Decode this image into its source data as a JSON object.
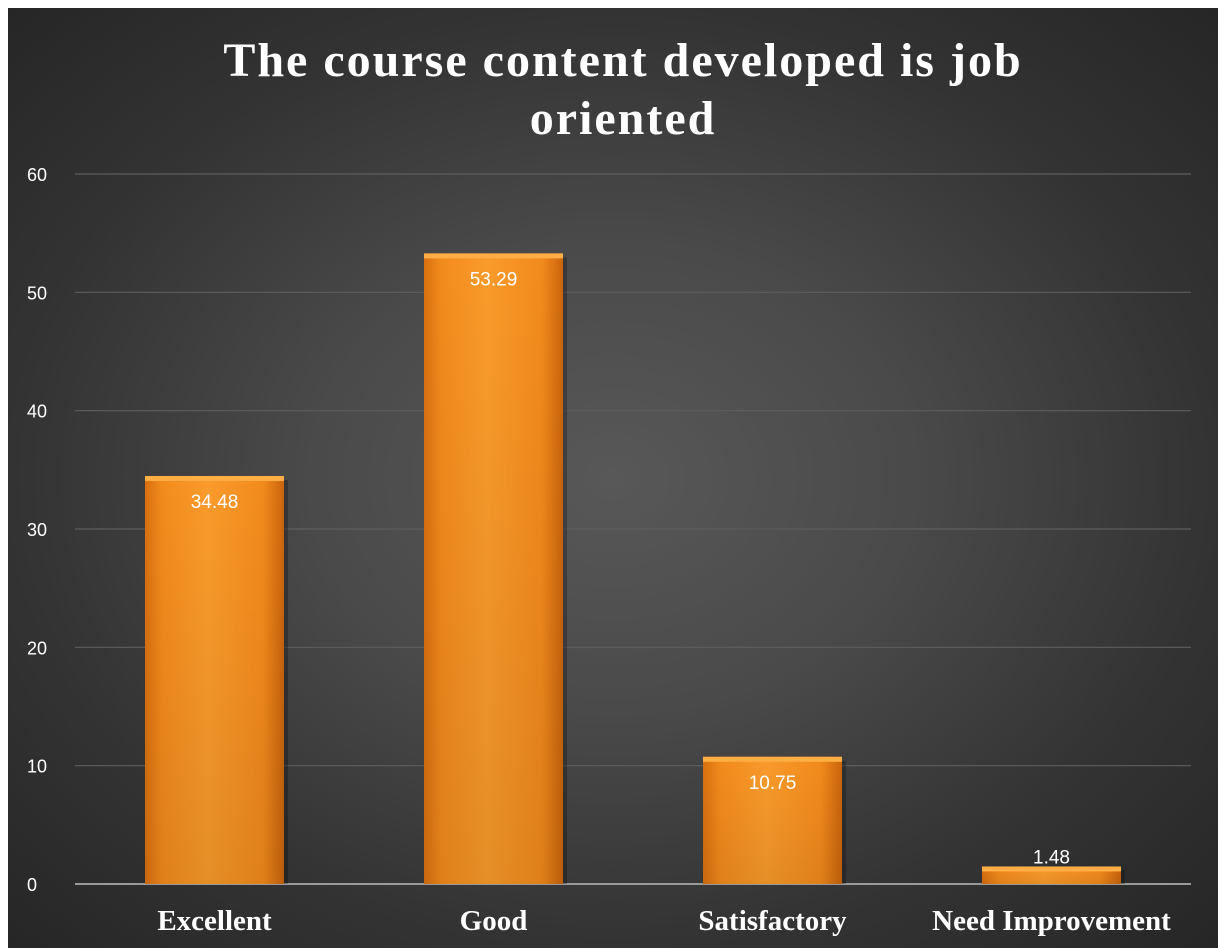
{
  "chart_data": {
    "type": "bar",
    "title_lines": [
      "The course content developed is job",
      "oriented"
    ],
    "categories": [
      "Excellent",
      "Good",
      "Satisfactory",
      "Need Improvement"
    ],
    "values": [
      34.48,
      53.29,
      10.75,
      1.48
    ],
    "data_labels": [
      "34.48",
      "53.29",
      "10.75",
      "1.48"
    ],
    "ylim": [
      0,
      60
    ],
    "yticks": [
      0,
      10,
      20,
      30,
      40,
      50,
      60
    ],
    "grid": true,
    "legend": "none",
    "xlabel": "",
    "ylabel": "",
    "colors": {
      "bar": "#f7931e",
      "bar_light": "#ffad45",
      "bar_dark": "#e07b15",
      "gridline": "#5e5e5e",
      "axis": "#9a9a9a",
      "text": "#ffffff"
    }
  }
}
